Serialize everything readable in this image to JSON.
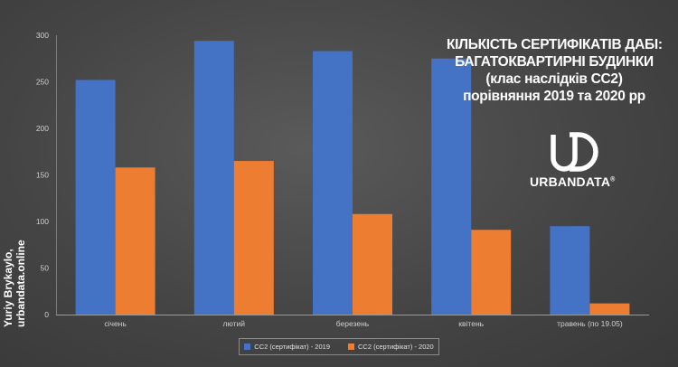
{
  "chart_data": {
    "type": "bar",
    "categories": [
      "січень",
      "лютий",
      "березень",
      "квітень",
      "травень (по 19.05)"
    ],
    "series": [
      {
        "name": "СС2 (сертифікат) - 2019",
        "color": "#4472C4",
        "values": [
          252,
          294,
          283,
          275,
          95
        ]
      },
      {
        "name": "СС2 (сертифікат) - 2020",
        "color": "#ED7D31",
        "values": [
          158,
          165,
          108,
          91,
          12
        ]
      }
    ],
    "ylim": [
      0,
      300
    ],
    "yticks": [
      0,
      50,
      100,
      150,
      200,
      250,
      300
    ],
    "grid": false,
    "legend_position": "bottom"
  },
  "title_lines": [
    "КІЛЬКІСТЬ СЕРТИФІКАТІВ ДАБІ:",
    "БАГАТОКВАРТИРНІ БУДИНКИ",
    "(клас наслідків СС2)",
    "порівняння 2019 та 2020 рр"
  ],
  "logo": {
    "text": "URBANDATA",
    "mark": "®"
  },
  "author": {
    "line1": "Yuriy Brykaylo,",
    "line2": "urbandata.online"
  },
  "colors": {
    "background": "#454545",
    "series_2019": "#4472C4",
    "series_2020": "#ED7D31"
  }
}
